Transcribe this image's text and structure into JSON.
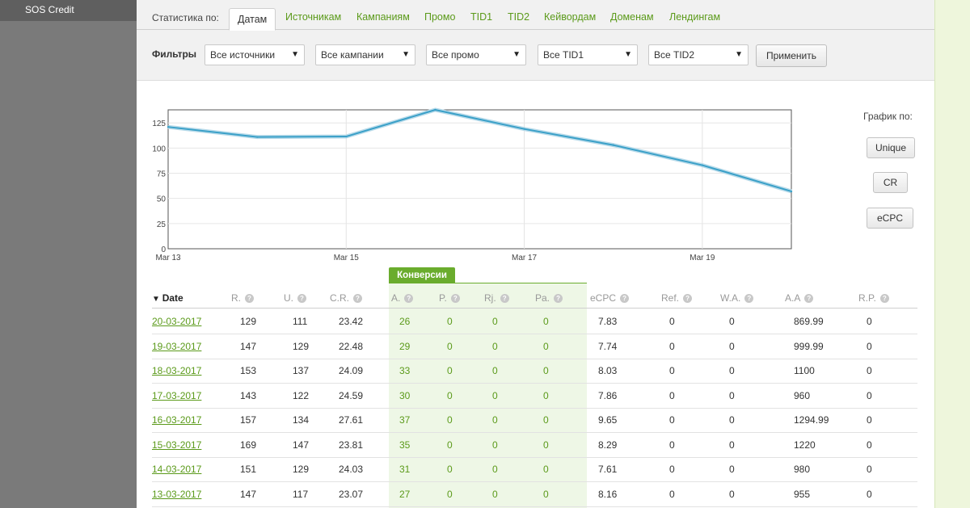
{
  "sidebar": {
    "active_item": "SOS Credit"
  },
  "tabs": {
    "label": "Статистика по:",
    "items": [
      "Датам",
      "Источникам",
      "Кампаниям",
      "Промо",
      "TID1",
      "TID2",
      "Кейвордам",
      "Доменам",
      "Лендингам"
    ],
    "active": "Датам"
  },
  "filters": {
    "label": "Фильтры",
    "selects": [
      "Все источники",
      "Все кампании",
      "Все промо",
      "Все TID1",
      "Все TID2"
    ],
    "apply_label": "Применить"
  },
  "chart_controls": {
    "label": "График по:",
    "buttons": [
      "Unique",
      "CR",
      "eCPC"
    ]
  },
  "chart_data": {
    "type": "line",
    "x": [
      "Mar 13",
      "Mar 14",
      "Mar 15",
      "Mar 16",
      "Mar 17",
      "Mar 18",
      "Mar 19",
      "Mar 20"
    ],
    "x_tick_labels": [
      "Mar 13",
      "Mar 15",
      "Mar 17",
      "Mar 19"
    ],
    "series": [
      {
        "values": [
          121,
          111,
          111.5,
          138,
          119,
          103,
          83,
          57
        ]
      }
    ],
    "ylim": [
      0,
      138
    ],
    "y_ticks": [
      0,
      25,
      50,
      75,
      100,
      125
    ],
    "grid": true,
    "line_color": "#3aa0c8"
  },
  "table": {
    "group_label": "Конверсии",
    "sort_indicator": "▼",
    "help_glyph": "?",
    "columns": [
      "Date",
      "R.",
      "U.",
      "C.R.",
      "A.",
      "P.",
      "Rj.",
      "Pa.",
      "eCPC",
      "Ref.",
      "W.A.",
      "A.A",
      "R.P."
    ],
    "rows": [
      [
        "20-03-2017",
        "129",
        "111",
        "23.42",
        "26",
        "0",
        "0",
        "0",
        "7.83",
        "0",
        "0",
        "869.99",
        "0"
      ],
      [
        "19-03-2017",
        "147",
        "129",
        "22.48",
        "29",
        "0",
        "0",
        "0",
        "7.74",
        "0",
        "0",
        "999.99",
        "0"
      ],
      [
        "18-03-2017",
        "153",
        "137",
        "24.09",
        "33",
        "0",
        "0",
        "0",
        "8.03",
        "0",
        "0",
        "1100",
        "0"
      ],
      [
        "17-03-2017",
        "143",
        "122",
        "24.59",
        "30",
        "0",
        "0",
        "0",
        "7.86",
        "0",
        "0",
        "960",
        "0"
      ],
      [
        "16-03-2017",
        "157",
        "134",
        "27.61",
        "37",
        "0",
        "0",
        "0",
        "9.65",
        "0",
        "0",
        "1294.99",
        "0"
      ],
      [
        "15-03-2017",
        "169",
        "147",
        "23.81",
        "35",
        "0",
        "0",
        "0",
        "8.29",
        "0",
        "0",
        "1220",
        "0"
      ],
      [
        "14-03-2017",
        "151",
        "129",
        "24.03",
        "31",
        "0",
        "0",
        "0",
        "7.61",
        "0",
        "0",
        "980",
        "0"
      ],
      [
        "13-03-2017",
        "147",
        "117",
        "23.07",
        "27",
        "0",
        "0",
        "0",
        "8.16",
        "0",
        "0",
        "955",
        "0"
      ]
    ]
  }
}
